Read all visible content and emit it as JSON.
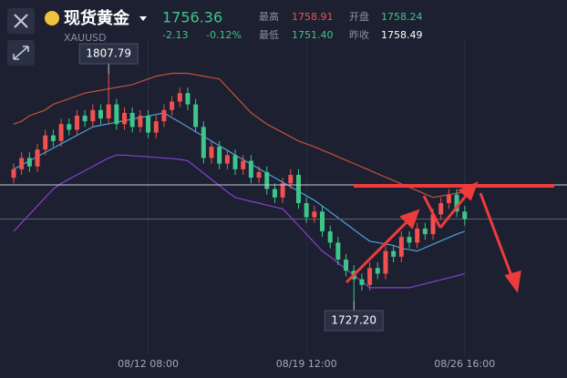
{
  "header": {
    "title": "现货黄金",
    "symbol": "XAUUSD",
    "price": "1756.36",
    "change": "-2.13",
    "change_pct": "-0.12%",
    "stats": [
      {
        "label": "最高",
        "value": "1758.91"
      },
      {
        "label": "开盘",
        "value": "1758.24"
      },
      {
        "label": "最低",
        "value": "1751.40"
      },
      {
        "label": "昨收",
        "value": "1758.49"
      }
    ]
  },
  "chart_data": {
    "type": "candlestick",
    "categories": [
      null,
      null,
      null,
      null,
      null,
      null,
      null,
      null,
      null,
      null,
      null,
      null,
      null,
      null,
      null,
      null,
      null,
      "08/12 08:00",
      null,
      null,
      null,
      null,
      null,
      null,
      null,
      null,
      null,
      null,
      null,
      null,
      null,
      null,
      null,
      null,
      null,
      null,
      null,
      "08/19 12:00",
      null,
      null,
      null,
      null,
      null,
      null,
      null,
      null,
      null,
      null,
      null,
      null,
      null,
      null,
      null,
      null,
      null,
      null,
      null,
      "08/26 16:00"
    ],
    "open": [
      1771,
      1774,
      1778,
      1775,
      1781,
      1786,
      1784,
      1790,
      1788,
      1793,
      1791,
      1795,
      1792,
      1797,
      1790,
      1794,
      1789,
      1793,
      1787,
      1791,
      1795,
      1798,
      1801,
      1797,
      1789,
      1778,
      1782,
      1776,
      1779,
      1774,
      1777,
      1771,
      1773,
      1767,
      1764,
      1769,
      1772,
      1762,
      1757,
      1759,
      1752,
      1748,
      1742,
      1738,
      1735,
      1733,
      1739,
      1737,
      1745,
      1743,
      1750,
      1748,
      1753,
      1751,
      1758,
      1762,
      1765,
      1759
    ],
    "high": [
      1776,
      1780,
      1780,
      1783,
      1788,
      1788,
      1792,
      1792,
      1795,
      1795,
      1797,
      1797,
      1807.79,
      1799,
      1796,
      1796,
      1795,
      1795,
      1793,
      1797,
      1800,
      1803,
      1803,
      1799,
      1791,
      1784,
      1784,
      1781,
      1781,
      1779,
      1779,
      1775,
      1775,
      1769,
      1771,
      1774,
      1774,
      1764,
      1761,
      1761,
      1754,
      1750,
      1744,
      1740,
      1737,
      1741,
      1741,
      1747,
      1747,
      1752,
      1752,
      1755,
      1755,
      1760,
      1764,
      1767,
      1767,
      1761
    ],
    "low": [
      1769,
      1772,
      1773,
      1773,
      1779,
      1782,
      1782,
      1786,
      1786,
      1789,
      1789,
      1790,
      1790,
      1788,
      1788,
      1787,
      1787,
      1785,
      1785,
      1789,
      1793,
      1796,
      1795,
      1787,
      1776,
      1776,
      1774,
      1774,
      1772,
      1772,
      1769,
      1769,
      1765,
      1762,
      1762,
      1767,
      1760,
      1755,
      1755,
      1750,
      1746,
      1740,
      1736,
      1727.2,
      1731,
      1731,
      1735,
      1735,
      1741,
      1741,
      1746,
      1746,
      1749,
      1749,
      1756,
      1760,
      1757,
      1754
    ],
    "close": [
      1774,
      1778,
      1775,
      1781,
      1786,
      1784,
      1790,
      1788,
      1793,
      1791,
      1795,
      1792,
      1797,
      1790,
      1794,
      1789,
      1793,
      1787,
      1791,
      1795,
      1798,
      1801,
      1797,
      1789,
      1778,
      1782,
      1776,
      1779,
      1774,
      1777,
      1771,
      1773,
      1767,
      1764,
      1769,
      1772,
      1762,
      1757,
      1759,
      1752,
      1748,
      1742,
      1738,
      1735,
      1733,
      1739,
      1737,
      1745,
      1743,
      1750,
      1748,
      1753,
      1751,
      1758,
      1762,
      1765,
      1759,
      1756.36
    ],
    "up_color": "#f0514f",
    "down_color": "#3fc48a",
    "bands": [
      {
        "color": "#c8503c",
        "values": [
          1790,
          1791,
          1793,
          1794,
          1795,
          1797,
          1798,
          1799,
          1800,
          1801,
          1801.5,
          1802,
          1802.5,
          1803,
          1803.5,
          1804,
          1805,
          1806,
          1807,
          1807.5,
          1808,
          1808,
          1808,
          1807.5,
          1807,
          1806.5,
          1806,
          1803,
          1800,
          1797,
          1794,
          1792,
          1790,
          1788.5,
          1787,
          1785.5,
          1784,
          1783,
          1782,
          1780.8,
          1779.6,
          1778.4,
          1777.2,
          1776,
          1774.8,
          1773.6,
          1772.4,
          1771.2,
          1770,
          1768.8,
          1767.6,
          1766.4,
          1765.2,
          1764,
          1764.5,
          1765,
          1765.5,
          1766
        ]
      },
      {
        "color": "#4fa0e0",
        "values": [
          1774,
          1775.5,
          1777,
          1778.5,
          1780,
          1781.5,
          1783,
          1784.5,
          1786,
          1787.5,
          1789,
          1789.6,
          1790.1,
          1790.7,
          1791.2,
          1791.8,
          1792.3,
          1792.9,
          1793.4,
          1794,
          1792.3,
          1790.7,
          1789,
          1787.3,
          1785.7,
          1784,
          1782.3,
          1780.7,
          1779,
          1777.4,
          1775.8,
          1774.2,
          1772.6,
          1771,
          1769.4,
          1767.8,
          1766.2,
          1764.6,
          1763,
          1761,
          1758.9,
          1756.8,
          1754.7,
          1752.6,
          1750.5,
          1748.5,
          1748,
          1747.5,
          1747,
          1746,
          1745.5,
          1745,
          1746.2,
          1747.4,
          1748.6,
          1749.8,
          1751,
          1752
        ]
      },
      {
        "color": "#8a3fd0",
        "values": [
          1752,
          1755,
          1758,
          1761,
          1764,
          1767,
          1769,
          1770.5,
          1772,
          1773.5,
          1775,
          1776.5,
          1778,
          1779,
          1779,
          1778.8,
          1778.6,
          1778.4,
          1778.2,
          1778,
          1777.8,
          1777.5,
          1777,
          1774.8,
          1772.6,
          1770.4,
          1768.2,
          1766,
          1764,
          1763.3,
          1762.6,
          1762,
          1761.3,
          1760.6,
          1760,
          1757,
          1754,
          1751,
          1748,
          1745,
          1743,
          1740.8,
          1738.6,
          1736.4,
          1734.2,
          1732,
          1732,
          1732,
          1732,
          1732,
          1732,
          1732.7,
          1733.4,
          1734.1,
          1734.8,
          1735.5,
          1736.2,
          1737
        ]
      }
    ],
    "high_label": 1807.79,
    "low_label": {
      "value": 1727.2,
      "label": "1727.20"
    },
    "ylim": [
      1700,
      1834
    ],
    "grid": true
  }
}
